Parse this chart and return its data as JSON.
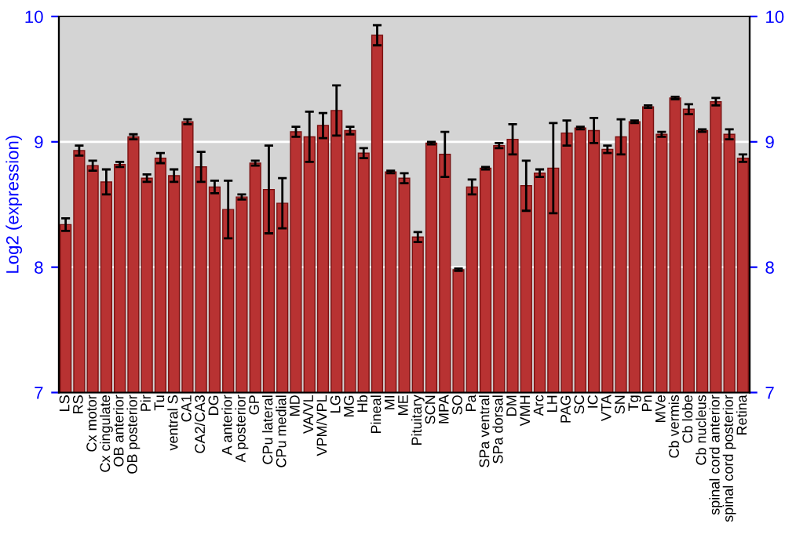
{
  "chart_data": {
    "type": "bar",
    "ylabel": "Log2 (expression)",
    "categories": [
      "LS",
      "RS",
      "Cx motor",
      "Cx cingulate",
      "OB anterior",
      "OB posterior",
      "Pir",
      "Tu",
      "ventral S",
      "CA1",
      "CA2/CA3",
      "DG",
      "A anterior",
      "A posterior",
      "GP",
      "CPu lateral",
      "CPu medial",
      "MD",
      "VA/VL",
      "VPM/VPL",
      "LG",
      "MG",
      "Hb",
      "Pineal",
      "MI",
      "ME",
      "Pituitary",
      "SCN",
      "MPA",
      "SO",
      "Pa",
      "SPa ventral",
      "SPa dorsal",
      "DM",
      "VMH",
      "Arc",
      "LH",
      "PAG",
      "SC",
      "IC",
      "VTA",
      "SN",
      "Tg",
      "Pn",
      "MVe",
      "Cb vermis",
      "Cb lobe",
      "Cb nucleus",
      "spinal cord anterior",
      "spinal cord posterior",
      "Retina"
    ],
    "values": [
      8.34,
      8.93,
      8.81,
      8.68,
      8.82,
      9.04,
      8.71,
      8.87,
      8.73,
      9.16,
      8.8,
      8.64,
      8.46,
      8.56,
      8.83,
      8.62,
      8.51,
      9.08,
      9.04,
      9.13,
      9.25,
      9.09,
      8.91,
      9.85,
      8.76,
      8.71,
      8.24,
      8.99,
      8.9,
      7.98,
      8.64,
      8.79,
      8.97,
      9.02,
      8.65,
      8.75,
      8.79,
      9.07,
      9.11,
      9.09,
      8.94,
      9.04,
      9.16,
      9.28,
      9.06,
      9.35,
      9.26,
      9.09,
      9.32,
      9.06,
      8.87
    ],
    "errors": [
      0.05,
      0.04,
      0.04,
      0.1,
      0.02,
      0.02,
      0.03,
      0.04,
      0.05,
      0.02,
      0.12,
      0.05,
      0.23,
      0.02,
      0.02,
      0.35,
      0.2,
      0.04,
      0.2,
      0.1,
      0.2,
      0.03,
      0.04,
      0.08,
      0.01,
      0.04,
      0.04,
      0.01,
      0.18,
      0.01,
      0.06,
      0.01,
      0.02,
      0.12,
      0.2,
      0.03,
      0.36,
      0.1,
      0.01,
      0.1,
      0.03,
      0.14,
      0.01,
      0.01,
      0.02,
      0.01,
      0.04,
      0.01,
      0.03,
      0.04,
      0.03
    ],
    "color": "#b83232",
    "ylim": [
      7,
      10
    ],
    "yticks": [
      7,
      8,
      9,
      10
    ],
    "y2lim": [
      7,
      10
    ],
    "y2ticks": [
      7,
      8,
      9,
      10
    ],
    "grid": "y"
  }
}
